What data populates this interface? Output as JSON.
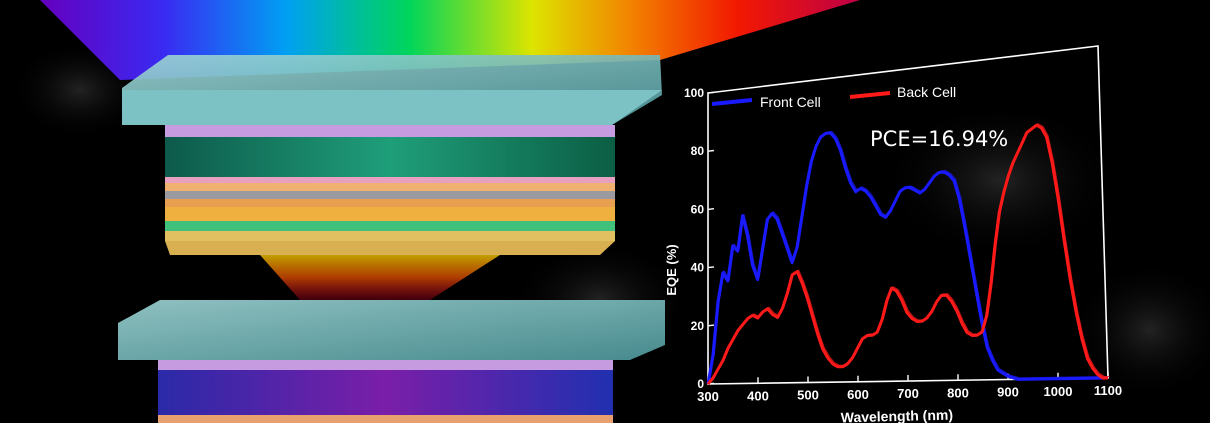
{
  "colors": {
    "background": "#000000",
    "front_cell": "#1a1aff",
    "back_cell": "#ff1a1a",
    "axis": "#ffffff"
  },
  "annotation": "PCE=16.94%",
  "chart_data": {
    "type": "line",
    "title": "",
    "xlabel": "Wavelength (nm)",
    "ylabel": "EQE (%)",
    "xlim": [
      300,
      1100
    ],
    "ylim": [
      0,
      100
    ],
    "xticks": [
      300,
      400,
      500,
      600,
      700,
      800,
      900,
      1000,
      1100
    ],
    "yticks": [
      0,
      20,
      40,
      60,
      80,
      100
    ],
    "grid": false,
    "legend_position": "top-left",
    "series": [
      {
        "name": "Front Cell",
        "color": "#1a1aff",
        "x": [
          300,
          310,
          320,
          330,
          340,
          350,
          360,
          370,
          380,
          390,
          400,
          410,
          420,
          430,
          440,
          450,
          460,
          470,
          480,
          490,
          500,
          510,
          520,
          530,
          540,
          550,
          560,
          570,
          580,
          590,
          600,
          610,
          620,
          630,
          640,
          650,
          660,
          670,
          680,
          690,
          700,
          710,
          720,
          730,
          740,
          750,
          760,
          770,
          780,
          790,
          800,
          810,
          820,
          830,
          840,
          850,
          860,
          870,
          880,
          890,
          900,
          920,
          950,
          1000,
          1050,
          1100
        ],
        "values": [
          0,
          10,
          28,
          38,
          35,
          47,
          45,
          57,
          50,
          40,
          35,
          45,
          55,
          57,
          55,
          50,
          45,
          40,
          45,
          55,
          65,
          73,
          78,
          81,
          82,
          82,
          80,
          76,
          70,
          65,
          62,
          63,
          62,
          60,
          57,
          54,
          53,
          55,
          58,
          61,
          62,
          62,
          61,
          60,
          61,
          63,
          65,
          66,
          66,
          65,
          63,
          57,
          48,
          38,
          28,
          18,
          10,
          6,
          3,
          2,
          1,
          0,
          0,
          0,
          0,
          0
        ]
      },
      {
        "name": "Back Cell",
        "color": "#ff1a1a",
        "x": [
          300,
          310,
          320,
          330,
          340,
          350,
          360,
          370,
          380,
          390,
          400,
          410,
          420,
          430,
          440,
          450,
          460,
          470,
          480,
          490,
          500,
          510,
          520,
          530,
          540,
          550,
          560,
          570,
          580,
          590,
          600,
          610,
          620,
          630,
          640,
          650,
          660,
          670,
          680,
          690,
          700,
          710,
          720,
          730,
          740,
          750,
          760,
          770,
          780,
          790,
          800,
          810,
          820,
          830,
          840,
          850,
          860,
          870,
          880,
          890,
          900,
          910,
          920,
          930,
          940,
          950,
          960,
          970,
          980,
          990,
          1000,
          1010,
          1020,
          1030,
          1040,
          1050,
          1060,
          1070,
          1080,
          1090,
          1100
        ],
        "values": [
          0,
          2,
          5,
          8,
          12,
          15,
          18,
          20,
          22,
          23,
          22,
          24,
          25,
          23,
          22,
          25,
          30,
          36,
          37,
          33,
          28,
          22,
          16,
          11,
          8,
          6,
          5,
          5,
          6,
          8,
          11,
          14,
          15,
          15,
          16,
          20,
          26,
          30,
          29,
          26,
          22,
          20,
          19,
          19,
          20,
          22,
          25,
          27,
          27,
          25,
          22,
          18,
          15,
          14,
          14,
          15,
          20,
          30,
          42,
          52,
          58,
          63,
          67,
          70,
          73,
          76,
          77,
          78,
          77,
          74,
          66,
          55,
          42,
          30,
          20,
          12,
          6,
          3,
          1,
          0,
          0
        ]
      }
    ]
  }
}
